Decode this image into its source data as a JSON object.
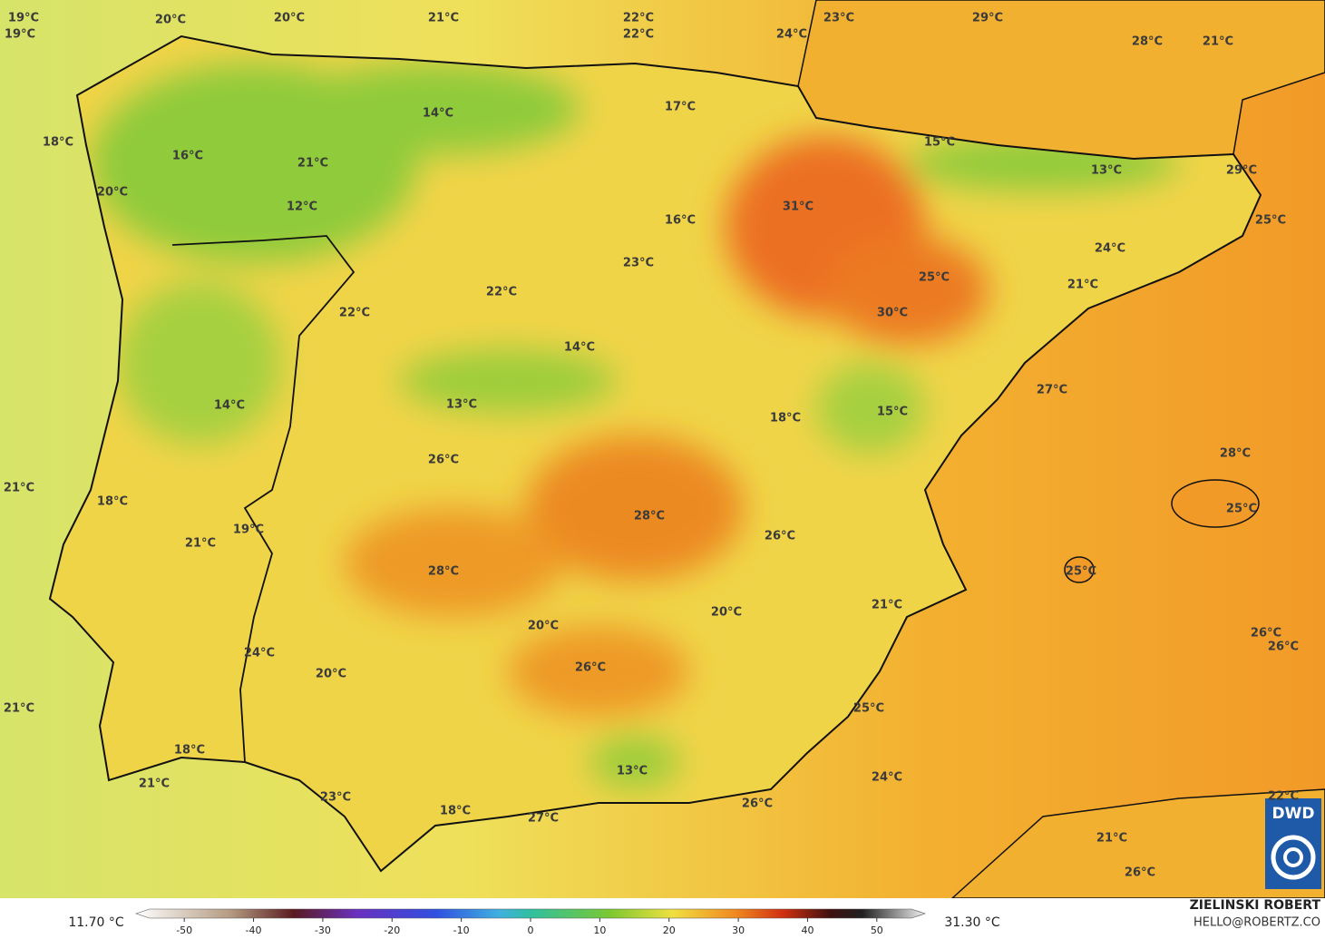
{
  "map": {
    "labels": [
      "19°C",
      "19°C",
      "20°C",
      "20°C",
      "21°C",
      "22°C",
      "22°C",
      "23°C",
      "24°C",
      "29°C",
      "28°C",
      "21°C",
      "14°C",
      "17°C",
      "18°C",
      "15°C",
      "16°C",
      "21°C",
      "13°C",
      "29°C",
      "20°C",
      "31°C",
      "12°C",
      "16°C",
      "25°C",
      "24°C",
      "23°C",
      "25°C",
      "21°C",
      "22°C",
      "22°C",
      "30°C",
      "14°C",
      "27°C",
      "14°C",
      "13°C",
      "18°C",
      "15°C",
      "28°C",
      "26°C",
      "21°C",
      "18°C",
      "25°C",
      "28°C",
      "19°C",
      "26°C",
      "21°C",
      "25°C",
      "28°C",
      "21°C",
      "20°C",
      "20°C",
      "26°C",
      "26°C",
      "24°C",
      "20°C",
      "26°C",
      "21°C",
      "25°C",
      "18°C",
      "24°C",
      "21°C",
      "13°C",
      "23°C",
      "26°C",
      "18°C",
      "27°C",
      "22°C",
      "21°C",
      "26°C"
    ],
    "colorbar": {
      "range": [
        -55,
        55
      ],
      "ticks": [
        -50,
        -40,
        -30,
        -20,
        -10,
        0,
        10,
        20,
        30,
        40,
        50
      ],
      "min_label": "11.70 °C",
      "max_label": "31.30 °C"
    },
    "author": "ZIELINSKI ROBERT",
    "contact": "HELLO@ROBERTZ.CO",
    "logo": "DWD"
  }
}
